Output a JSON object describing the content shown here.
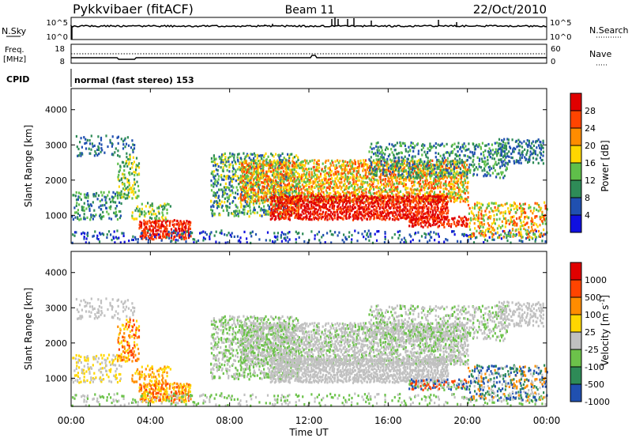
{
  "header": {
    "title": "Pykkvibaer (fitACF)",
    "beam": "Beam 11",
    "date": "22/Oct/2010"
  },
  "top_panels": {
    "nsky_label": "N.Sky",
    "nsky_ticks": [
      "10^5",
      "10^0"
    ],
    "nsearch_label": "N.Search",
    "nsearch_ticks": [
      "10^5",
      "10^0"
    ],
    "freq_label_1": "Freq.",
    "freq_label_2": "[MHz]",
    "freq_ticks": [
      "18",
      "8"
    ],
    "nave_label": "Nave",
    "nave_ticks": [
      "60",
      "0"
    ],
    "cpid_label": "CPID",
    "cpid_value": "normal (fast stereo) 153"
  },
  "chart_data": [
    {
      "type": "heatmap",
      "name": "power-panel",
      "ylabel": "Slant Range [km]",
      "ylim": [
        200,
        4600
      ],
      "yticks": [
        "4000",
        "3000",
        "2000",
        "1000"
      ],
      "xlim": [
        "00:00",
        "24:00"
      ],
      "colorbar_label": "Power [dB]",
      "colorbar_ticks": [
        "28",
        "24",
        "20",
        "16",
        "12",
        "8",
        "4"
      ],
      "colors": [
        "#1010e0",
        "#2050b0",
        "#2e8b57",
        "#5fbf4a",
        "#ffd700",
        "#ff8c00",
        "#ff4400",
        "#e00000"
      ]
    },
    {
      "type": "heatmap",
      "name": "velocity-panel",
      "ylabel": "Slant Range [km]",
      "ylim": [
        200,
        4600
      ],
      "yticks": [
        "4000",
        "3000",
        "2000",
        "1000"
      ],
      "xlim": [
        "00:00",
        "24:00"
      ],
      "xticks": [
        "00:00",
        "04:00",
        "08:00",
        "12:00",
        "16:00",
        "20:00",
        "00:00"
      ],
      "xlabel": "Time UT",
      "colorbar_label": "Velocity [m s",
      "colorbar_label_sup": "-1",
      "colorbar_label_end": "]",
      "colorbar_ticks": [
        "1000",
        "500",
        "100",
        "25",
        "-25",
        "-100",
        "-500",
        "-1000"
      ],
      "colors": [
        "#2050b0",
        "#2e8b57",
        "#6cc24a",
        "#c0c0c0",
        "#ffd700",
        "#ff8c00",
        "#ff4400",
        "#e00000"
      ]
    }
  ]
}
